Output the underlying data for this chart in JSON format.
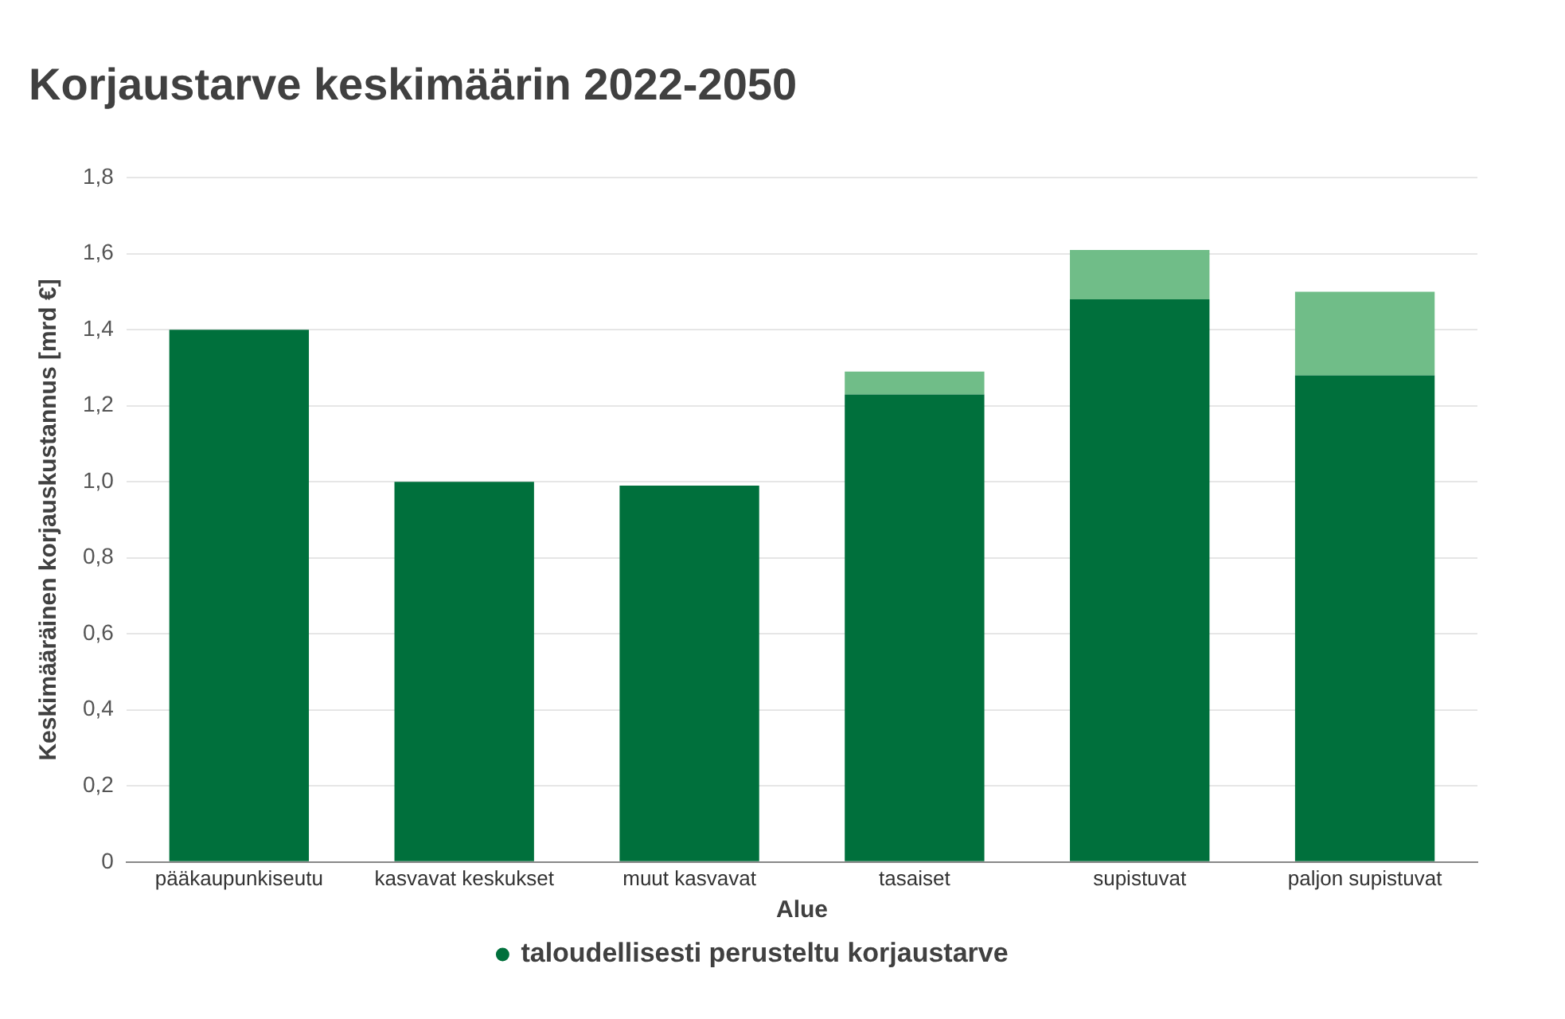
{
  "chart_data": {
    "type": "bar",
    "title": "Korjaustarve keskimäärin 2022-2050",
    "xlabel": "Alue",
    "ylabel": "Keskimääräinen korjauskustannus [mrd €]",
    "categories": [
      "pääkaupunkiseutu",
      "kasvavat keskukset",
      "muut kasvavat",
      "tasaiset",
      "supistuvat",
      "paljon supistuvat"
    ],
    "series": [
      {
        "name": "taloudellisesti perusteltu korjaustarve",
        "color": "#00703c",
        "values": [
          1.4,
          1.0,
          0.99,
          1.23,
          1.48,
          1.28
        ]
      },
      {
        "color": "#70bd88",
        "values": [
          null,
          null,
          null,
          0.06,
          0.13,
          0.22
        ]
      }
    ],
    "stacked": true,
    "ylim": [
      0,
      1.8
    ],
    "yticks": [
      0,
      {
        "value": 0.2,
        "label": "0,2"
      },
      {
        "value": 0.4,
        "label": "0,4"
      },
      {
        "value": 0.6,
        "label": "0,6"
      },
      {
        "value": 0.8,
        "label": "0,8"
      },
      {
        "value": 1,
        "label": "1,0"
      },
      {
        "value": 1.2,
        "label": "1,2"
      },
      {
        "value": 1.4,
        "label": "1,4"
      },
      {
        "value": 1.6,
        "label": "1,6"
      },
      {
        "value": 1.8,
        "label": "1,8"
      }
    ],
    "grid": "y",
    "legend": "bottom"
  }
}
